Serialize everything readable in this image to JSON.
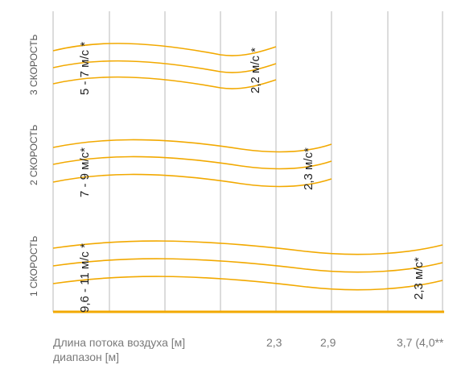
{
  "diagram": {
    "colors": {
      "curve": "#F2A900",
      "baseline": "#F2A900",
      "grid": "#b8b8b8",
      "label": "#555555",
      "footer": "#7a7a7a",
      "speed_text": "#222222"
    },
    "row_labels": [
      "3 СКОРОСТЬ",
      "2 СКОРОСТЬ",
      "1 СКОРОСТЬ"
    ],
    "rows": [
      {
        "name": "3 СКОРОСТЬ",
        "start_speed": "5 - 7 м/с *",
        "end_speed": "2,2 м/с *",
        "range_value": "2,3"
      },
      {
        "name": "2 СКОРОСТЬ",
        "start_speed": "7 - 9 м/с*",
        "end_speed": "2,3 м/с*",
        "range_value": "2,9"
      },
      {
        "name": "1 СКОРОСТЬ",
        "start_speed": "9,6 - 11 м/с *",
        "end_speed": "2,3 м/с*",
        "range_value": "3,7 (4,0**"
      }
    ],
    "footer": {
      "line1": "Длина потока воздуха [м]",
      "line2": "диапазон [м]",
      "values": [
        "2,3",
        "2,9",
        "3,7 (4,0**"
      ]
    }
  }
}
